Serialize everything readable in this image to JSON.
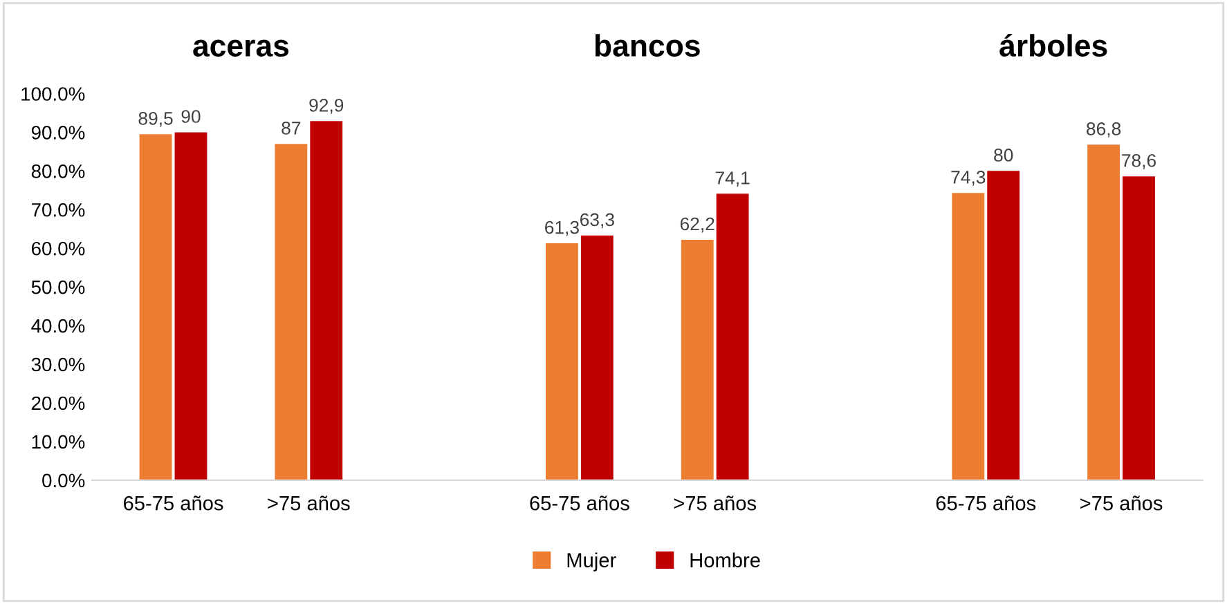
{
  "chart_data": {
    "type": "bar",
    "categories": [
      "65-75 años",
      ">75 años",
      null,
      "65-75 años",
      ">75 años",
      null,
      "65-75 años",
      ">75 años"
    ],
    "series": [
      {
        "name": "Mujer",
        "color": "#ed7d31",
        "values": [
          89.5,
          87,
          null,
          61.3,
          62.2,
          null,
          74.3,
          86.8
        ],
        "value_labels": [
          "89,5",
          "87",
          null,
          "61,3",
          "62,2",
          null,
          "74,3",
          "86,8"
        ]
      },
      {
        "name": "Hombre",
        "color": "#c00000",
        "values": [
          90,
          92.9,
          null,
          63.3,
          74.1,
          null,
          80,
          78.6
        ],
        "value_labels": [
          "90",
          "92,9",
          null,
          "63,3",
          "74,1",
          null,
          "80",
          "78,6"
        ]
      }
    ],
    "annotations": [
      "aceras",
      "bancos",
      "árboles"
    ],
    "ylim": [
      0,
      100
    ],
    "yticks": [
      {
        "value": 0,
        "label": "0.0%"
      },
      {
        "value": 10,
        "label": "10.0%"
      },
      {
        "value": 20,
        "label": "20.0%"
      },
      {
        "value": 30,
        "label": "30.0%"
      },
      {
        "value": 40,
        "label": "40.0%"
      },
      {
        "value": 50,
        "label": "50.0%"
      },
      {
        "value": 60,
        "label": "60.0%"
      },
      {
        "value": 70,
        "label": "70.0%"
      },
      {
        "value": 80,
        "label": "80.0%"
      },
      {
        "value": 90,
        "label": "90.0%"
      },
      {
        "value": 100,
        "label": "100.0%"
      }
    ],
    "grid": false,
    "legend": "bottom"
  }
}
